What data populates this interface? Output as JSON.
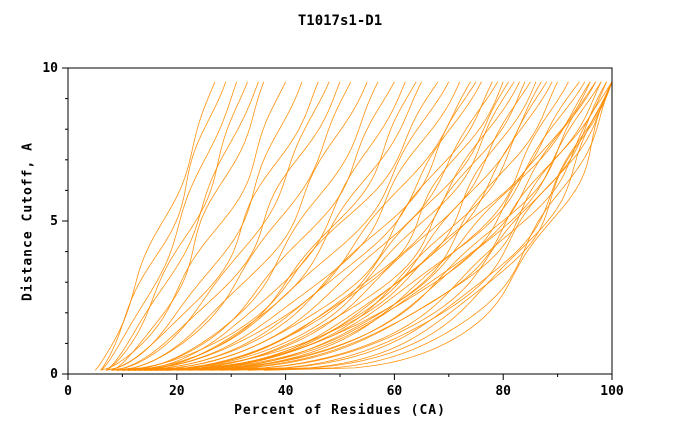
{
  "title": "T1017s1-D1",
  "chart_data": {
    "type": "line",
    "title": "T1017s1-D1",
    "xlabel": "Percent of Residues (CA)",
    "ylabel": "Distance Cutoff, A",
    "xlim": [
      0,
      100
    ],
    "ylim": [
      0,
      10
    ],
    "x_major_ticks": [
      0,
      20,
      40,
      60,
      80,
      100
    ],
    "x_minor_ticks": [
      10,
      30,
      50,
      70,
      90
    ],
    "y_major_ticks": [
      0,
      5,
      10
    ],
    "y_minor_ticks": [
      1,
      2,
      3,
      4,
      6,
      7,
      8,
      9
    ],
    "grid": false,
    "legend": "none",
    "color": "#ff8c00",
    "axis_color": "#000000",
    "curve_y_range": [
      0.12,
      9.55
    ],
    "curves": [
      {
        "xs": 5,
        "xe": 27,
        "p": 0.85,
        "w": 1.0,
        "ph": 0.5
      },
      {
        "xs": 6,
        "xe": 29,
        "p": 0.9,
        "w": 1.2,
        "ph": 2.1
      },
      {
        "xs": 6,
        "xe": 31,
        "p": 0.8,
        "w": 0.8,
        "ph": 4.0
      },
      {
        "xs": 7,
        "xe": 33,
        "p": 0.75,
        "w": 1.1,
        "ph": 1.2
      },
      {
        "xs": 7,
        "xe": 35,
        "p": 0.8,
        "w": 0.9,
        "ph": 3.3
      },
      {
        "xs": 8,
        "xe": 36,
        "p": 0.7,
        "w": 1.3,
        "ph": 5.0
      },
      {
        "xs": 6,
        "xe": 40,
        "p": 0.65,
        "w": 1.4,
        "ph": 0.8
      },
      {
        "xs": 7,
        "xe": 43,
        "p": 0.6,
        "w": 1.2,
        "ph": 2.5
      },
      {
        "xs": 7,
        "xe": 46,
        "p": 0.62,
        "w": 1.5,
        "ph": 4.2
      },
      {
        "xs": 8,
        "xe": 48,
        "p": 0.58,
        "w": 1.1,
        "ph": 1.7
      },
      {
        "xs": 8,
        "xe": 50,
        "p": 0.6,
        "w": 1.6,
        "ph": 3.9
      },
      {
        "xs": 9,
        "xe": 52,
        "p": 0.55,
        "w": 1.2,
        "ph": 0.3
      },
      {
        "xs": 9,
        "xe": 55,
        "p": 0.57,
        "w": 1.4,
        "ph": 2.9
      },
      {
        "xs": 10,
        "xe": 57,
        "p": 0.5,
        "w": 1.3,
        "ph": 5.6
      },
      {
        "xs": 10,
        "xe": 60,
        "p": 0.52,
        "w": 1.5,
        "ph": 1.1
      },
      {
        "xs": 11,
        "xe": 62,
        "p": 0.5,
        "w": 1.2,
        "ph": 3.5
      },
      {
        "xs": 11,
        "xe": 64,
        "p": 0.48,
        "w": 1.6,
        "ph": 0.6
      },
      {
        "xs": 12,
        "xe": 65,
        "p": 0.5,
        "w": 1.3,
        "ph": 4.8
      },
      {
        "xs": 8,
        "xe": 68,
        "p": 0.5,
        "w": 1.8,
        "ph": 0.2
      },
      {
        "xs": 9,
        "xe": 70,
        "p": 0.48,
        "w": 1.5,
        "ph": 1.9
      },
      {
        "xs": 9,
        "xe": 72,
        "p": 0.45,
        "w": 1.7,
        "ph": 3.1
      },
      {
        "xs": 10,
        "xe": 74,
        "p": 0.47,
        "w": 1.4,
        "ph": 5.2
      },
      {
        "xs": 10,
        "xe": 75,
        "p": 0.44,
        "w": 1.9,
        "ph": 0.9
      },
      {
        "xs": 11,
        "xe": 76,
        "p": 0.46,
        "w": 1.5,
        "ph": 2.3
      },
      {
        "xs": 11,
        "xe": 78,
        "p": 0.42,
        "w": 1.8,
        "ph": 4.5
      },
      {
        "xs": 12,
        "xe": 79,
        "p": 0.45,
        "w": 1.4,
        "ph": 1.4
      },
      {
        "xs": 12,
        "xe": 80,
        "p": 0.4,
        "w": 2.0,
        "ph": 3.7
      },
      {
        "xs": 13,
        "xe": 81,
        "p": 0.43,
        "w": 1.6,
        "ph": 5.9
      },
      {
        "xs": 13,
        "xe": 82,
        "p": 0.41,
        "w": 1.7,
        "ph": 0.4
      },
      {
        "xs": 14,
        "xe": 83,
        "p": 0.44,
        "w": 1.5,
        "ph": 2.7
      },
      {
        "xs": 14,
        "xe": 84,
        "p": 0.4,
        "w": 1.9,
        "ph": 4.1
      },
      {
        "xs": 15,
        "xe": 85,
        "p": 0.42,
        "w": 1.6,
        "ph": 1.0
      },
      {
        "xs": 15,
        "xe": 86,
        "p": 0.38,
        "w": 1.8,
        "ph": 3.2
      },
      {
        "xs": 16,
        "xe": 87,
        "p": 0.4,
        "w": 1.5,
        "ph": 5.4
      },
      {
        "xs": 16,
        "xe": 88,
        "p": 0.39,
        "w": 1.7,
        "ph": 0.7
      },
      {
        "xs": 17,
        "xe": 89,
        "p": 0.41,
        "w": 1.4,
        "ph": 2.2
      },
      {
        "xs": 18,
        "xe": 90,
        "p": 0.38,
        "w": 1.8,
        "ph": 4.6
      },
      {
        "xs": 18,
        "xe": 92,
        "p": 0.37,
        "w": 1.6,
        "ph": 1.6
      },
      {
        "xs": 10,
        "xe": 94,
        "p": 0.4,
        "w": 1.9,
        "ph": 0.1
      },
      {
        "xs": 11,
        "xe": 95,
        "p": 0.38,
        "w": 1.6,
        "ph": 1.8
      },
      {
        "xs": 12,
        "xe": 96,
        "p": 0.36,
        "w": 1.8,
        "ph": 3.4
      },
      {
        "xs": 13,
        "xe": 96,
        "p": 0.4,
        "w": 1.5,
        "ph": 5.1
      },
      {
        "xs": 14,
        "xe": 97,
        "p": 0.35,
        "w": 1.9,
        "ph": 0.6
      },
      {
        "xs": 15,
        "xe": 97,
        "p": 0.38,
        "w": 1.6,
        "ph": 2.4
      },
      {
        "xs": 16,
        "xe": 98,
        "p": 0.34,
        "w": 1.8,
        "ph": 4.3
      },
      {
        "xs": 17,
        "xe": 98,
        "p": 0.37,
        "w": 1.5,
        "ph": 1.3
      },
      {
        "xs": 18,
        "xe": 99,
        "p": 0.35,
        "w": 1.9,
        "ph": 3.6
      },
      {
        "xs": 20,
        "xe": 99,
        "p": 0.33,
        "w": 1.6,
        "ph": 5.7
      },
      {
        "xs": 22,
        "xe": 100,
        "p": 0.36,
        "w": 1.7,
        "ph": 0.8
      },
      {
        "xs": 24,
        "xe": 100,
        "p": 0.32,
        "w": 1.5,
        "ph": 2.8
      },
      {
        "xs": 26,
        "xe": 100,
        "p": 0.35,
        "w": 1.8,
        "ph": 4.9
      },
      {
        "xs": 28,
        "xe": 100,
        "p": 0.3,
        "w": 1.4,
        "ph": 1.5
      },
      {
        "xs": 30,
        "xe": 100,
        "p": 0.33,
        "w": 1.7,
        "ph": 3.0
      },
      {
        "xs": 33,
        "xe": 100,
        "p": 0.3,
        "w": 1.5,
        "ph": 5.3
      },
      {
        "xs": 36,
        "xe": 100,
        "p": 0.28,
        "w": 1.6,
        "ph": 0.35
      }
    ]
  }
}
